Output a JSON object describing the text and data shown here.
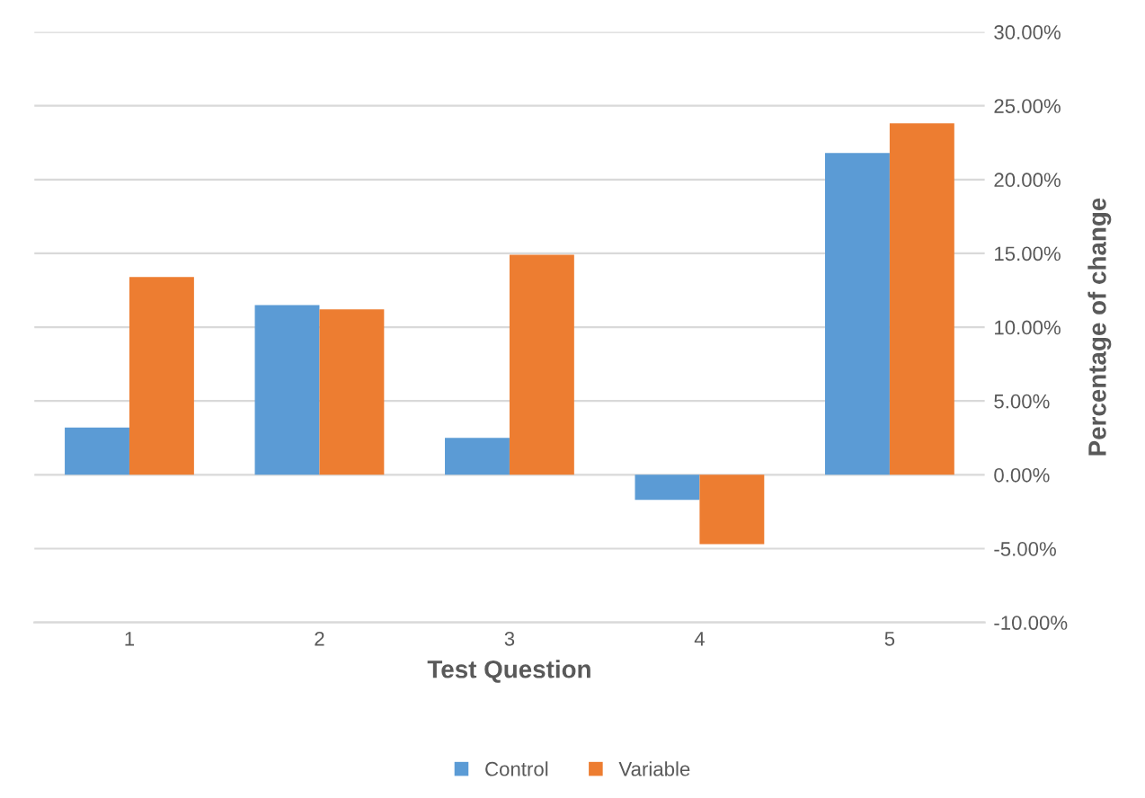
{
  "chart_data": {
    "type": "bar",
    "xlabel": "Test Question",
    "ylabel": "Percentage of change",
    "categories": [
      "1",
      "2",
      "3",
      "4",
      "5"
    ],
    "series": [
      {
        "name": "Control",
        "color": "#5b9bd5",
        "values": [
          3.2,
          11.5,
          2.5,
          -1.7,
          21.8
        ]
      },
      {
        "name": "Variable",
        "color": "#ed7d31",
        "values": [
          13.4,
          11.2,
          14.9,
          -4.7,
          23.8
        ]
      }
    ],
    "ylim": [
      -10,
      30
    ],
    "yticks": [
      {
        "value": -10,
        "label": "-10.00%"
      },
      {
        "value": -5,
        "label": "-5.00%"
      },
      {
        "value": 0,
        "label": "0.00%"
      },
      {
        "value": 5,
        "label": "5.00%"
      },
      {
        "value": 10,
        "label": "10.00%"
      },
      {
        "value": 15,
        "label": "15.00%"
      },
      {
        "value": 20,
        "label": "20.00%"
      },
      {
        "value": 25,
        "label": "25.00%"
      },
      {
        "value": 30,
        "label": "30.00%"
      }
    ],
    "grid": "y",
    "legend": "bottom"
  }
}
